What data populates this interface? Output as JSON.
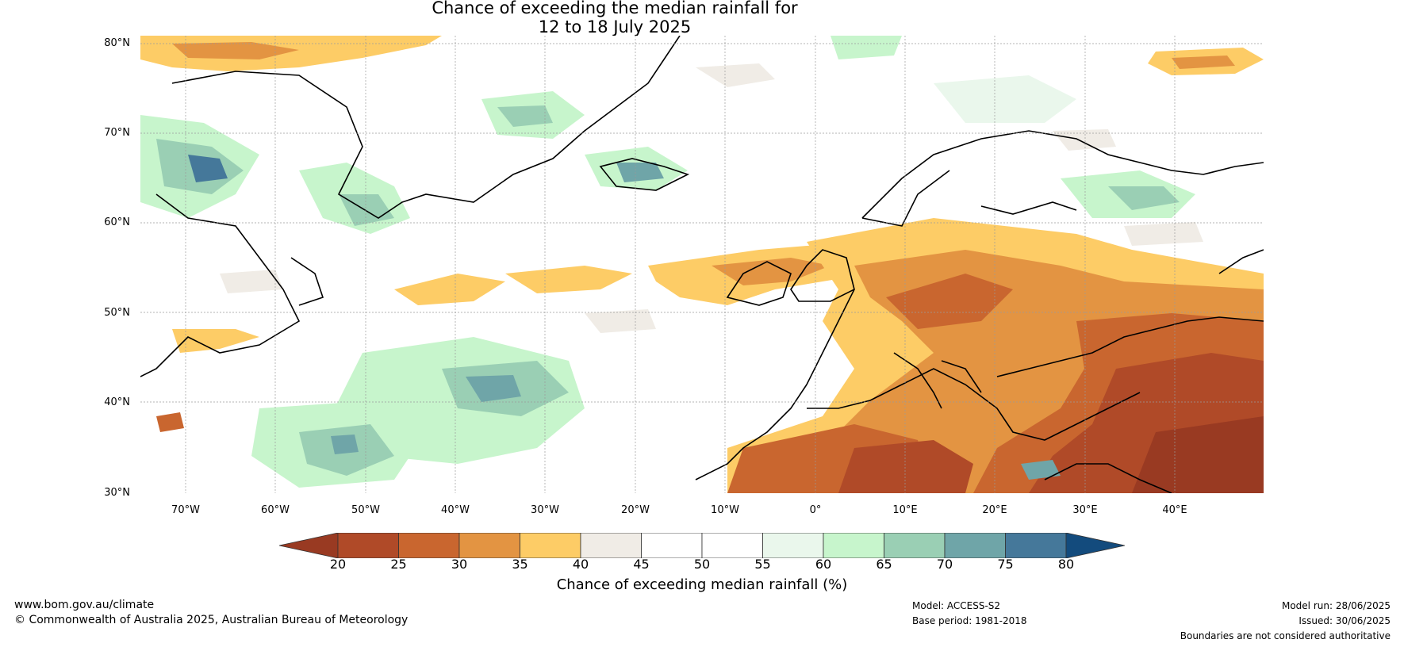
{
  "title": {
    "line1": "Chance of exceeding the median rainfall for",
    "line2": "12 to 18 July 2025"
  },
  "map": {
    "lat_labels": [
      "80°N",
      "70°N",
      "60°N",
      "50°N",
      "40°N",
      "30°N"
    ],
    "lon_labels": [
      "70°W",
      "60°W",
      "50°W",
      "40°W",
      "30°W",
      "20°W",
      "10°W",
      "0°",
      "10°E",
      "20°E",
      "30°E",
      "40°E"
    ]
  },
  "colorbar": {
    "label": "Chance of exceeding median rainfall (%)",
    "ticks": [
      "20",
      "25",
      "30",
      "35",
      "40",
      "45",
      "50",
      "55",
      "60",
      "65",
      "70",
      "75",
      "80"
    ],
    "under_color": "#993a22",
    "colors": [
      "#b04a28",
      "#c9662f",
      "#e39442",
      "#fdcc66",
      "#f0ece6",
      "#ffffff",
      "#ffffff",
      "#eaf7ec",
      "#c7f5cc",
      "#9acfb4",
      "#6fa5a8",
      "#45789a"
    ],
    "over_color": "#134b7d"
  },
  "footer": {
    "website": "www.bom.gov.au/climate",
    "copyright": "© Commonwealth of Australia 2025, Australian Bureau of Meteorology",
    "model": "Model: ACCESS-S2",
    "base_period": "Base period: 1981-2018",
    "model_run": "Model run: 28/06/2025",
    "issued": "Issued: 30/06/2025",
    "disclaimer": "Boundaries are not considered authoritative"
  }
}
